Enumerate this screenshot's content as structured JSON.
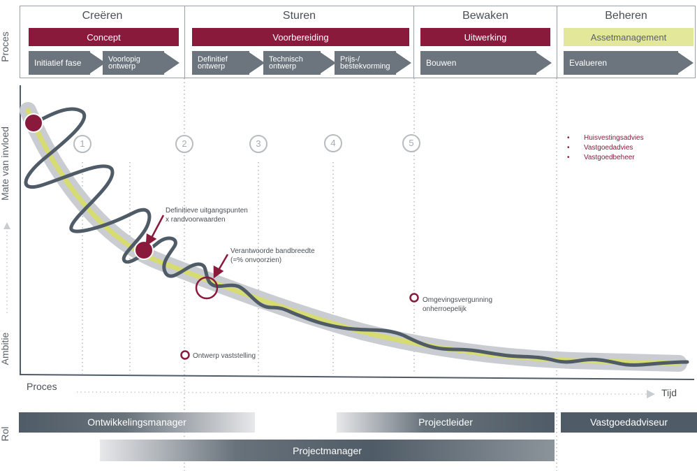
{
  "side_labels": {
    "proces": "Proces",
    "influence": "Mate van invloed",
    "ambition": "Ambitie",
    "rol": "Rol"
  },
  "phases": [
    {
      "title": "Creëren",
      "bar": "Concept",
      "steps": [
        "Initiatief fase",
        "Voorlopig ontwerp"
      ]
    },
    {
      "title": "Sturen",
      "bar": "Voorbereiding",
      "steps": [
        "Definitief ontwerp",
        "Technisch ontwerp",
        "Prijs-/ bestekvorming"
      ]
    },
    {
      "title": "Bewaken",
      "bar": "Uitwerking",
      "steps": [
        "Bouwen"
      ]
    },
    {
      "title": "Beheren",
      "bar": "Assetmanagement",
      "steps": [
        "Evalueren"
      ]
    }
  ],
  "milestones": [
    "1",
    "2",
    "3",
    "4",
    "5"
  ],
  "annotations": {
    "uitgangspunten": [
      "Definitieve uitgangspunten",
      "x randvoorwaarden"
    ],
    "bandbreedte": [
      "Verantwoorde bandbreedte",
      "(=% onvoorzien)"
    ],
    "vergunning": [
      "Omgevingsvergunning",
      "onherroepelijk"
    ],
    "vaststelling": "Ontwerp vaststelling"
  },
  "beheer_bullets": [
    "Huisvestingsadvies",
    "Vastgoedadvies",
    "Vastgoedbeheer"
  ],
  "axis": {
    "x_start": "Proces",
    "x_end": "Tijd"
  },
  "roles": {
    "ontwikkelingsmanager": "Ontwikkelingsmanager",
    "projectleider": "Projectleider",
    "vastgoedadviseur": "Vastgoedadviseur",
    "projectmanager": "Projectmanager"
  },
  "colors": {
    "maroon": "#8a1a3c",
    "slate": "#4f5b66",
    "arrow_gray": "#6c757d",
    "band_gray": "#c9ccd0",
    "band_yellow": "#d7dc72",
    "asset_yellow": "#e2e79a"
  }
}
